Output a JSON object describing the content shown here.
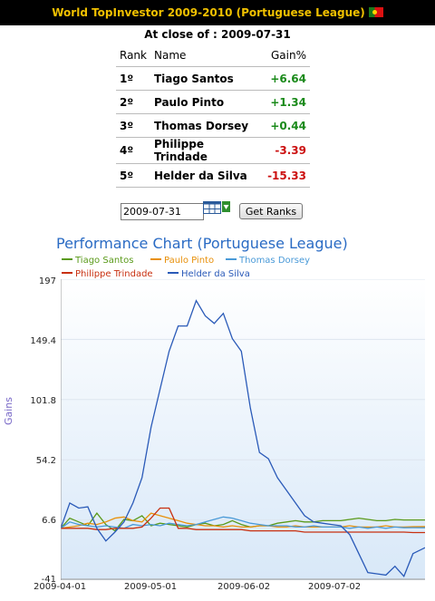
{
  "header": {
    "title": "World TopInvestor 2009-2010 (Portuguese League)"
  },
  "close_line": "At close of : 2009-07-31",
  "ranking": {
    "headers": [
      "Rank",
      "Name",
      "Gain%"
    ],
    "rows": [
      {
        "rank": "1º",
        "name": "Tiago Santos",
        "gain": "+6.64",
        "sign": "pos"
      },
      {
        "rank": "2º",
        "name": "Paulo Pinto",
        "gain": "+1.34",
        "sign": "pos"
      },
      {
        "rank": "3º",
        "name": "Thomas Dorsey",
        "gain": "+0.44",
        "sign": "pos"
      },
      {
        "rank": "4º",
        "name": "Philippe Trindade",
        "gain": "-3.39",
        "sign": "neg"
      },
      {
        "rank": "5º",
        "name": "Helder da Silva",
        "gain": "-15.33",
        "sign": "neg"
      }
    ]
  },
  "date_form": {
    "value": "2009-07-31",
    "button": "Get Ranks"
  },
  "colors": {
    "header_bg": "#000000",
    "header_text": "#f0c000",
    "positive": "#1a8a1a",
    "negative": "#cc1111",
    "title": "#2a6bc4"
  },
  "chart_data": {
    "type": "line",
    "title": "Performance Chart (Portuguese League)",
    "ylabel": "Gains",
    "ylim": [
      -41,
      197
    ],
    "yticks": [
      "197",
      "149.4",
      "101.8",
      "54.2",
      "6.6",
      "-41"
    ],
    "xticks": [
      "2009-04-01",
      "2009-05-01",
      "2009-06-02",
      "2009-07-02"
    ],
    "x": [
      "2009-04-01",
      "2009-04-04",
      "2009-04-07",
      "2009-04-10",
      "2009-04-13",
      "2009-04-16",
      "2009-04-19",
      "2009-04-22",
      "2009-04-25",
      "2009-04-28",
      "2009-05-01",
      "2009-05-04",
      "2009-05-07",
      "2009-05-10",
      "2009-05-13",
      "2009-05-16",
      "2009-05-19",
      "2009-05-22",
      "2009-05-25",
      "2009-05-28",
      "2009-05-31",
      "2009-06-03",
      "2009-06-06",
      "2009-06-09",
      "2009-06-12",
      "2009-06-15",
      "2009-06-18",
      "2009-06-21",
      "2009-06-24",
      "2009-06-27",
      "2009-06-30",
      "2009-07-03",
      "2009-07-06",
      "2009-07-09",
      "2009-07-12",
      "2009-07-15",
      "2009-07-18",
      "2009-07-21",
      "2009-07-24",
      "2009-07-27",
      "2009-07-31"
    ],
    "legend_position": "top",
    "series": [
      {
        "name": "Tiago Santos",
        "color": "#5a9a1a",
        "values": [
          0,
          8,
          5,
          2,
          12,
          3,
          -2,
          7,
          6,
          10,
          2,
          4,
          3,
          2,
          1,
          3,
          4,
          2,
          3,
          6,
          3,
          1,
          2,
          2,
          4,
          5,
          6,
          5,
          5,
          6,
          6,
          6,
          7,
          8,
          7,
          6,
          6,
          7,
          6.6,
          6.6,
          6.6
        ]
      },
      {
        "name": "Paulo Pinto",
        "color": "#e8900a",
        "values": [
          0,
          1,
          2,
          4,
          3,
          5,
          8,
          9,
          6,
          5,
          12,
          10,
          8,
          6,
          4,
          3,
          2,
          2,
          1,
          2,
          1,
          1,
          2,
          2,
          1,
          1,
          2,
          1,
          1,
          1,
          1,
          1,
          2,
          1,
          1,
          1,
          2,
          1,
          1,
          1.3,
          1.34
        ]
      },
      {
        "name": "Thomas Dorsey",
        "color": "#4a9ad8",
        "values": [
          0,
          5,
          3,
          2,
          1,
          2,
          1,
          0,
          3,
          2,
          3,
          2,
          4,
          3,
          2,
          3,
          5,
          7,
          9,
          8,
          6,
          4,
          3,
          2,
          2,
          2,
          1,
          1,
          2,
          1,
          1,
          1,
          0,
          1,
          0,
          1,
          0,
          1,
          0.4,
          0.5,
          0.44
        ]
      },
      {
        "name": "Philippe Trindade",
        "color": "#c83010",
        "values": [
          0,
          0,
          0,
          0,
          -1,
          -1,
          0,
          0,
          0,
          1,
          8,
          16,
          16,
          0,
          0,
          -1,
          -1,
          -1,
          -1,
          -1,
          -1,
          -2,
          -2,
          -2,
          -2,
          -2,
          -2,
          -3,
          -3,
          -3,
          -3,
          -3,
          -3,
          -3,
          -3,
          -3,
          -3,
          -3,
          -3,
          -3.4,
          -3.39
        ]
      },
      {
        "name": "Helder da Silva",
        "color": "#2a5ab8",
        "values": [
          0,
          20,
          16,
          17,
          0,
          -10,
          -3,
          5,
          20,
          40,
          80,
          110,
          140,
          160,
          160,
          180,
          168,
          162,
          170,
          150,
          140,
          95,
          60,
          55,
          40,
          30,
          20,
          10,
          5,
          4,
          3,
          2,
          -5,
          -20,
          -35,
          -36,
          -37,
          -30,
          -38,
          -20,
          -15.33
        ]
      }
    ]
  }
}
